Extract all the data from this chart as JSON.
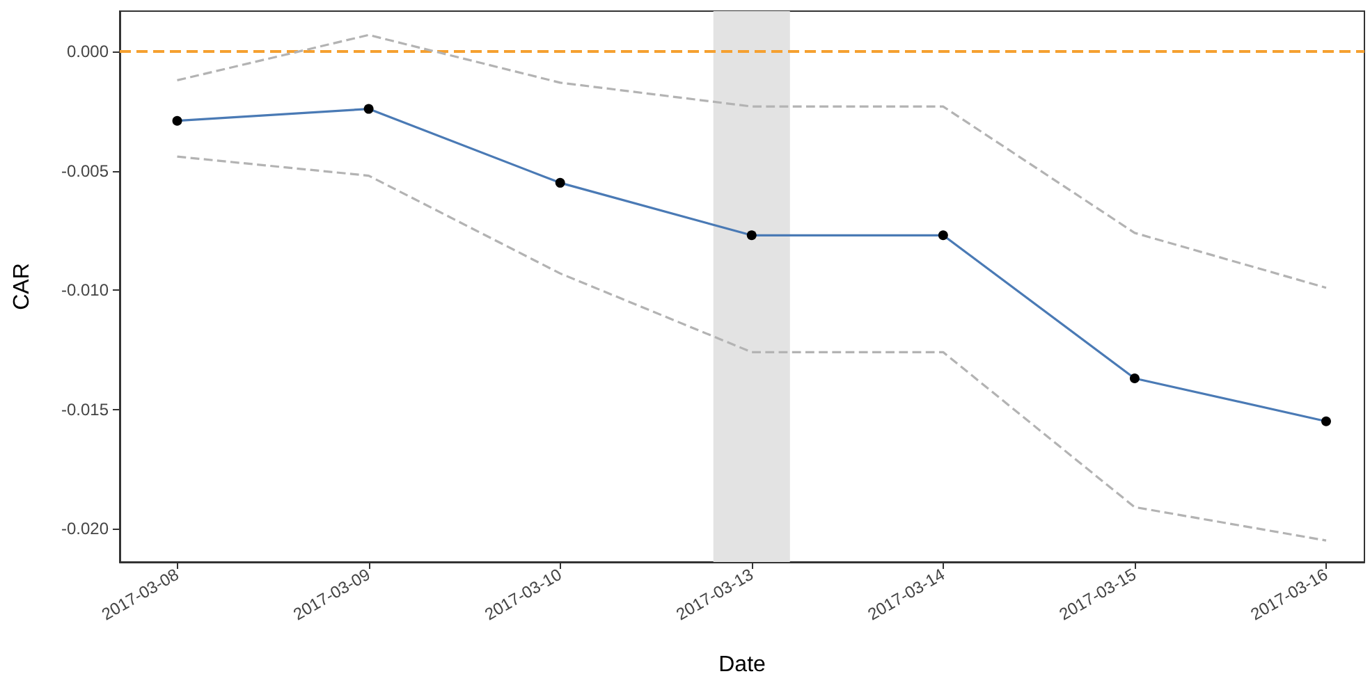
{
  "chart_data": {
    "type": "line",
    "xlabel": "Date",
    "ylabel": "CAR",
    "categories": [
      "2017-03-08",
      "2017-03-09",
      "2017-03-10",
      "2017-03-13",
      "2017-03-14",
      "2017-03-15",
      "2017-03-16"
    ],
    "series": [
      {
        "color": "#4a7ab5",
        "marker": "circle",
        "line_style": "solid",
        "values": [
          -0.0029,
          -0.0024,
          -0.0055,
          -0.0077,
          -0.0077,
          -0.0137,
          -0.0155
        ]
      },
      {
        "color": "#b3b3b3",
        "marker": "none",
        "line_style": "dashed",
        "values": [
          -0.0012,
          0.0007,
          -0.0013,
          -0.0023,
          -0.0023,
          -0.0076,
          -0.0099
        ]
      },
      {
        "color": "#b3b3b3",
        "marker": "none",
        "line_style": "dashed",
        "values": [
          -0.0044,
          -0.0052,
          -0.0093,
          -0.0126,
          -0.0126,
          -0.0191,
          -0.0205
        ]
      }
    ],
    "ylim": [
      -0.0214,
      0.0017
    ],
    "yticks": [
      {
        "value": -0.02,
        "label": "-0.020"
      },
      {
        "value": -0.015,
        "label": "-0.015"
      },
      {
        "value": -0.01,
        "label": "-0.010"
      },
      {
        "value": -0.005,
        "label": "-0.005"
      },
      {
        "value": 0,
        "label": "0.000"
      }
    ],
    "ref_lines": [
      {
        "axis": "y",
        "value": 0,
        "color": "#f5a030",
        "line_style": "dashed"
      }
    ],
    "bands": [
      {
        "axis": "x",
        "from": "2017-03-13",
        "to": "2017-03-13",
        "color": "#e3e3e3"
      }
    ],
    "grid": false
  }
}
